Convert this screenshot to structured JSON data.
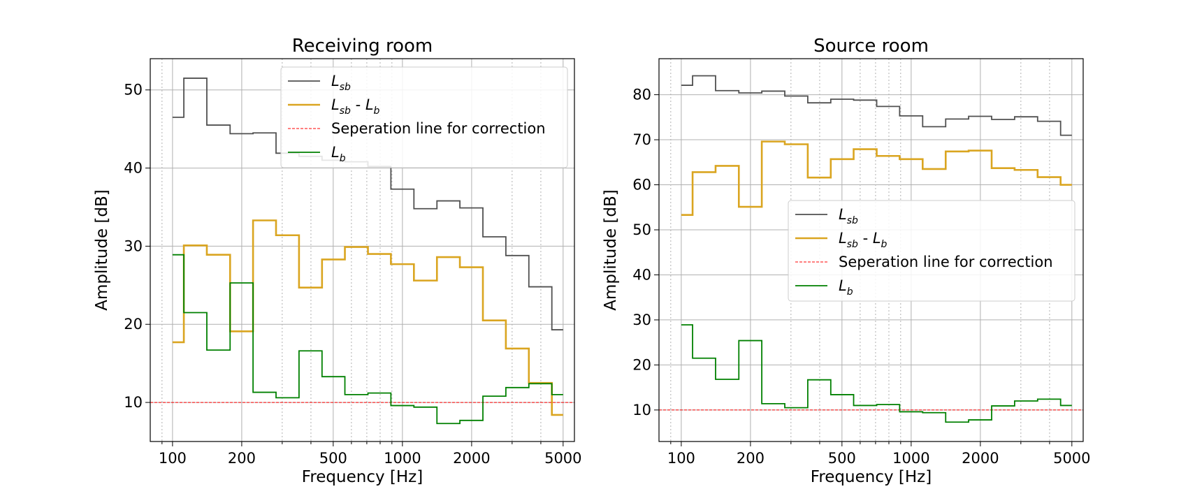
{
  "chart_data": [
    {
      "type": "line",
      "step": "post",
      "title": "Receiving room",
      "xlabel": "Frequency [Hz]",
      "ylabel": "Amplitude [dB]",
      "xscale": "log",
      "xlim": [
        80,
        5600
      ],
      "ylim": [
        5,
        54
      ],
      "xticks": [
        100,
        200,
        500,
        1000,
        2000,
        5000
      ],
      "xtick_labels": [
        "100",
        "200",
        "500",
        "1000",
        "2000",
        "5000"
      ],
      "yticks": [
        10,
        20,
        30,
        40,
        50
      ],
      "ytick_labels": [
        "10",
        "20",
        "30",
        "40",
        "50"
      ],
      "grid": true,
      "legend_position": "upper-right",
      "x": [
        100,
        112,
        141,
        178,
        224,
        282,
        355,
        447,
        562,
        708,
        891,
        1122,
        1413,
        1778,
        2239,
        2818,
        3548,
        4467,
        5000
      ],
      "series": [
        {
          "name": "L_sb",
          "display_main": "L",
          "display_sub": "sb",
          "color": "#505050",
          "values": [
            46.5,
            51.5,
            45.5,
            44.4,
            44.5,
            41.9,
            41.5,
            41.0,
            40.8,
            40.2,
            37.3,
            34.8,
            35.8,
            34.9,
            31.2,
            28.8,
            24.8,
            19.3,
            19.3
          ]
        },
        {
          "name": "L_sb - L_b",
          "display_main": "L",
          "display_sub": "sb",
          "display_mid": " - L",
          "display_sub2": "b",
          "color": "#daa520",
          "values": [
            17.7,
            30.1,
            28.9,
            19.1,
            33.3,
            31.4,
            24.7,
            28.3,
            29.9,
            29.0,
            27.7,
            25.6,
            28.6,
            27.3,
            20.5,
            16.9,
            12.5,
            8.4,
            8.4
          ]
        },
        {
          "name": "Seperation line for correction",
          "color": "#ff0000",
          "dashed": true,
          "constant": 10
        },
        {
          "name": "L_b",
          "display_main": "L",
          "display_sub": "b",
          "color": "#008000",
          "values": [
            28.9,
            21.5,
            16.7,
            25.3,
            11.3,
            10.6,
            16.6,
            13.3,
            11.0,
            11.2,
            9.6,
            9.4,
            7.3,
            7.7,
            10.8,
            11.9,
            12.4,
            11.0,
            11.0
          ]
        }
      ]
    },
    {
      "type": "line",
      "step": "post",
      "title": "Source room",
      "xlabel": "Frequency [Hz]",
      "ylabel": "Amplitude [dB]",
      "xscale": "log",
      "xlim": [
        80,
        5600
      ],
      "ylim": [
        3,
        88
      ],
      "xticks": [
        100,
        200,
        500,
        1000,
        2000,
        5000
      ],
      "xtick_labels": [
        "100",
        "200",
        "500",
        "1000",
        "2000",
        "5000"
      ],
      "yticks": [
        10,
        20,
        30,
        40,
        50,
        60,
        70,
        80
      ],
      "ytick_labels": [
        "10",
        "20",
        "30",
        "40",
        "50",
        "60",
        "70",
        "80"
      ],
      "grid": true,
      "legend_position": "center-right",
      "x": [
        100,
        112,
        141,
        178,
        224,
        282,
        355,
        447,
        562,
        708,
        891,
        1122,
        1413,
        1778,
        2239,
        2818,
        3548,
        4467,
        5000
      ],
      "series": [
        {
          "name": "L_sb",
          "display_main": "L",
          "display_sub": "sb",
          "color": "#505050",
          "values": [
            82.1,
            84.2,
            80.9,
            80.4,
            80.8,
            79.7,
            78.2,
            79.0,
            78.8,
            77.4,
            75.3,
            72.9,
            74.6,
            75.2,
            74.5,
            75.1,
            74.1,
            71.0,
            71.0
          ]
        },
        {
          "name": "L_sb - L_b",
          "display_main": "L",
          "display_sub": "sb",
          "display_mid": " - L",
          "display_sub2": "b",
          "color": "#daa520",
          "values": [
            53.3,
            62.8,
            64.2,
            55.1,
            69.6,
            69.0,
            61.6,
            65.7,
            67.9,
            66.4,
            65.7,
            63.5,
            67.4,
            67.6,
            63.7,
            63.3,
            61.7,
            60.0,
            60.0
          ]
        },
        {
          "name": "Seperation line for correction",
          "color": "#ff0000",
          "dashed": true,
          "constant": 10
        },
        {
          "name": "L_b",
          "display_main": "L",
          "display_sub": "b",
          "color": "#008000",
          "values": [
            28.9,
            21.5,
            16.8,
            25.4,
            11.4,
            10.5,
            16.7,
            13.4,
            11.0,
            11.2,
            9.6,
            9.4,
            7.3,
            7.8,
            10.9,
            12.0,
            12.4,
            11.0,
            11.0
          ]
        }
      ]
    }
  ]
}
